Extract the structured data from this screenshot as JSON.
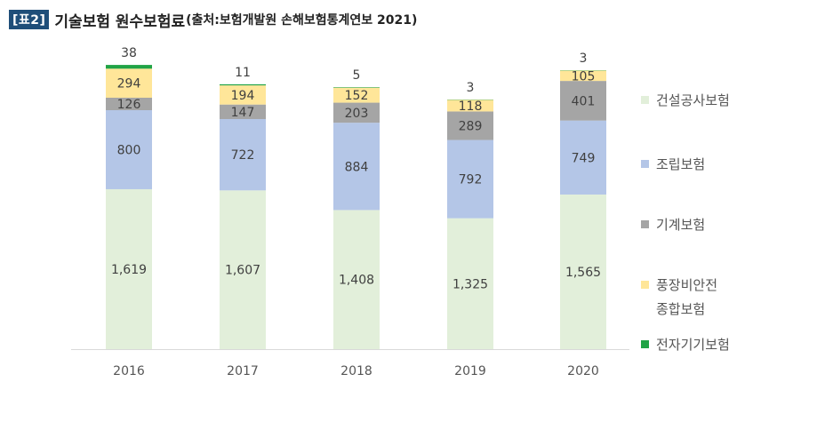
{
  "header": {
    "tag": "[표2]",
    "title": "기술보험 원수보험료",
    "source": "(출처:보험개발원 손해보험통계연보 2021)"
  },
  "chart_data": {
    "type": "bar",
    "stacked": true,
    "categories": [
      "2016",
      "2017",
      "2018",
      "2019",
      "2020"
    ],
    "series": [
      {
        "name": "건설공사보험",
        "color": "#e2efda",
        "values": [
          1619,
          1607,
          1408,
          1325,
          1565
        ],
        "labels": [
          "1,619",
          "1,607",
          "1,408",
          "1,325",
          "1,565"
        ]
      },
      {
        "name": "조립보험",
        "color": "#b4c6e7",
        "values": [
          800,
          722,
          884,
          792,
          749
        ],
        "labels": [
          "800",
          "722",
          "884",
          "792",
          "749"
        ]
      },
      {
        "name": "기계보험",
        "color": "#a5a5a5",
        "values": [
          126,
          147,
          203,
          289,
          401
        ],
        "labels": [
          "126",
          "147",
          "203",
          "289",
          "401"
        ]
      },
      {
        "name": "풍장비안전 종합보험",
        "legend_lines": [
          "풍장비안전",
          "종합보험"
        ],
        "color": "#ffe699",
        "values": [
          294,
          194,
          152,
          118,
          105
        ],
        "labels": [
          "294",
          "194",
          "152",
          "118",
          "105"
        ]
      },
      {
        "name": "전자기기보험",
        "color": "#21a346",
        "values": [
          38,
          11,
          5,
          3,
          3
        ],
        "labels": [
          "38",
          "11",
          "5",
          "3",
          "3"
        ]
      }
    ],
    "legend_position": "right",
    "grid": false
  }
}
